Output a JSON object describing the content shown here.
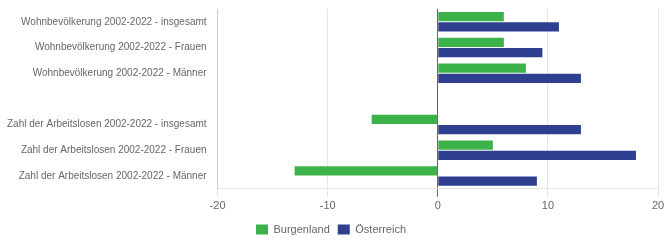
{
  "chart_data": {
    "type": "bar",
    "orientation": "horizontal",
    "categories": [
      "Wohnbevölkerung 2002-2022 - insgesamt",
      "Wohnbevölkerung 2002-2022 - Frauen",
      "Wohnbevölkerung 2002-2022 - Männer",
      null,
      "Zahl der Arbeitslosen 2002-2022 - insgesamt",
      "Zahl der Arbeitslosen 2002-2022 - Frauen",
      "Zahl der Arbeitslosen 2002-2022 - Männer"
    ],
    "series": [
      {
        "name": "Burgenland",
        "color": "#3cb34a",
        "values": [
          6.0,
          6.0,
          8.0,
          null,
          -6.0,
          5.0,
          -13.0
        ]
      },
      {
        "name": "Österreich",
        "color": "#2e3f8f",
        "values": [
          11.0,
          9.5,
          13.0,
          null,
          13.0,
          18.0,
          9.0
        ]
      }
    ],
    "xlim": [
      -20,
      20
    ],
    "xticks": [
      -20,
      -10,
      0,
      10,
      20
    ],
    "grid": true,
    "legend": "bottom"
  }
}
